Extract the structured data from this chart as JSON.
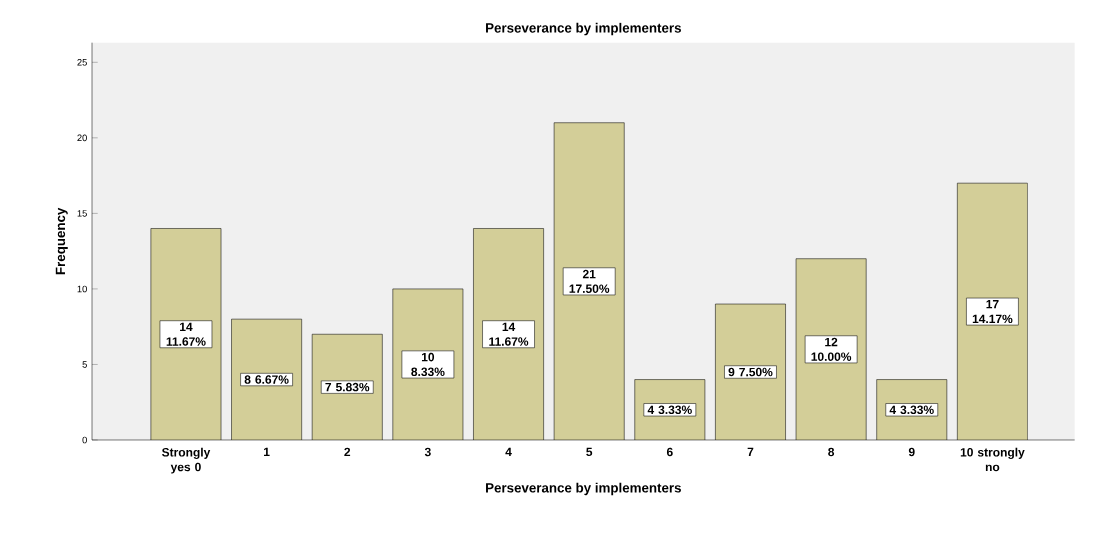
{
  "chart_data": {
    "type": "bar",
    "title": "Perseverance by implementers",
    "xlabel": "Perseverance by implementers",
    "ylabel": "Frequency",
    "categories": [
      "Strongly yes 0",
      "1",
      "2",
      "3",
      "4",
      "5",
      "6",
      "7",
      "8",
      "9",
      "10 strongly no"
    ],
    "values": [
      14,
      8,
      7,
      10,
      14,
      21,
      4,
      9,
      12,
      4,
      17
    ],
    "value_labels": [
      "14 11.67%",
      "8 6.67%",
      "7 5.83%",
      "10 8.33%",
      "14 11.67%",
      "21 17.50%",
      "4 3.33%",
      "9 7.50%",
      "12 10.00%",
      "4 3.33%",
      "17 14.17%"
    ],
    "color": "#d3ce98",
    "ylim": [
      0,
      26.3
    ],
    "yticks": [
      0,
      5,
      10,
      15,
      20,
      25
    ],
    "grid": false
  }
}
